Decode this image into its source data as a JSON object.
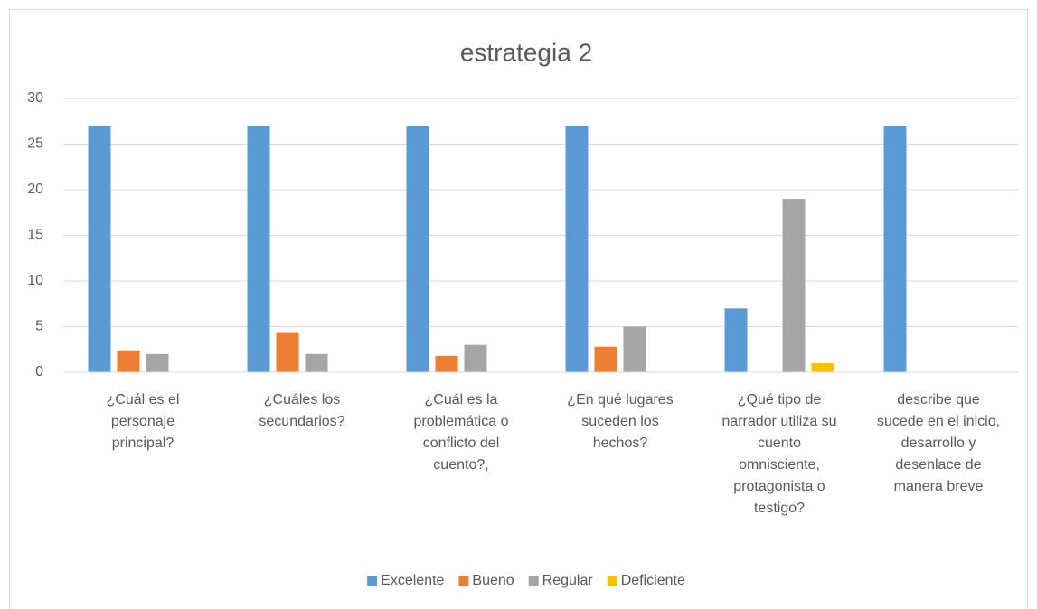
{
  "chart_data": {
    "type": "bar",
    "title": "estrategia 2",
    "categories": [
      "¿Cuál es el personaje principal?",
      "¿Cuáles los secundarios?",
      "¿Cuál es la problemática o conflicto del cuento?,",
      "¿En qué lugares suceden los hechos?",
      "¿Qué tipo de narrador utiliza su cuento omnisciente, protagonista o testigo?",
      "describe que sucede en el inicio, desarrollo y desenlace de manera breve"
    ],
    "series": [
      {
        "name": "Excelente",
        "color": "#5b9bd5",
        "values": [
          27,
          27,
          27,
          27,
          7,
          27
        ]
      },
      {
        "name": "Bueno",
        "color": "#ed7d31",
        "values": [
          2.4,
          4.4,
          1.8,
          2.8,
          0,
          0
        ]
      },
      {
        "name": "Regular",
        "color": "#a5a5a5",
        "values": [
          2,
          2,
          3,
          5,
          19,
          0
        ]
      },
      {
        "name": "Deficiente",
        "color": "#ffc000",
        "values": [
          0,
          0,
          0,
          0,
          1,
          0
        ]
      }
    ],
    "ylim": [
      0,
      30
    ],
    "yticks": [
      0,
      5,
      10,
      15,
      20,
      25,
      30
    ],
    "grid": true,
    "legend": "bottom"
  }
}
